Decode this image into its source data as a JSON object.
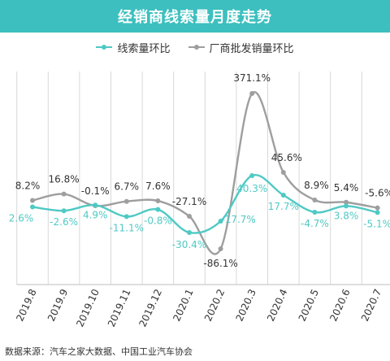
{
  "title": "经销商线索量月度走势",
  "source": "数据来源：汽车之家大数据、中国工业汽车协会",
  "colors": {
    "header": "#3dbfbf",
    "series1": "#4fc9c4",
    "series2": "#9e9e9e"
  },
  "chart_data": {
    "type": "line",
    "categories": [
      "2019.8",
      "2019.9",
      "2019.10",
      "2019.11",
      "2019.12",
      "2020.1",
      "2020.2",
      "2020.3",
      "2020.4",
      "2020.5",
      "2020.6",
      "2020.7"
    ],
    "series": [
      {
        "name": "线索量环比",
        "values": [
          2.6,
          -2.6,
          4.9,
          -11.1,
          -0.8,
          -30.4,
          -17.7,
          40.3,
          17.7,
          -4.7,
          3.8,
          -5.1
        ],
        "labels": [
          "2.6%",
          "-2.6%",
          "4.9%",
          "-11.1%",
          "-0.8%",
          "-30.4%",
          "-17.7%",
          "40.3%",
          "17.7%",
          "-4.7%",
          "3.8%",
          "-5.1%"
        ]
      },
      {
        "name": "厂商批发销量环比",
        "values": [
          8.2,
          16.8,
          -0.1,
          6.7,
          7.6,
          -27.1,
          -86.1,
          371.1,
          45.6,
          8.9,
          5.4,
          -5.6
        ],
        "labels": [
          "8.2%",
          "16.8%",
          "-0.1%",
          "6.7%",
          "7.6%",
          "-27.1%",
          "-86.1%",
          "371.1%",
          "45.6%",
          "8.9%",
          "5.4%",
          "-5.6%"
        ]
      }
    ],
    "grid": false,
    "legend": "top-center"
  }
}
